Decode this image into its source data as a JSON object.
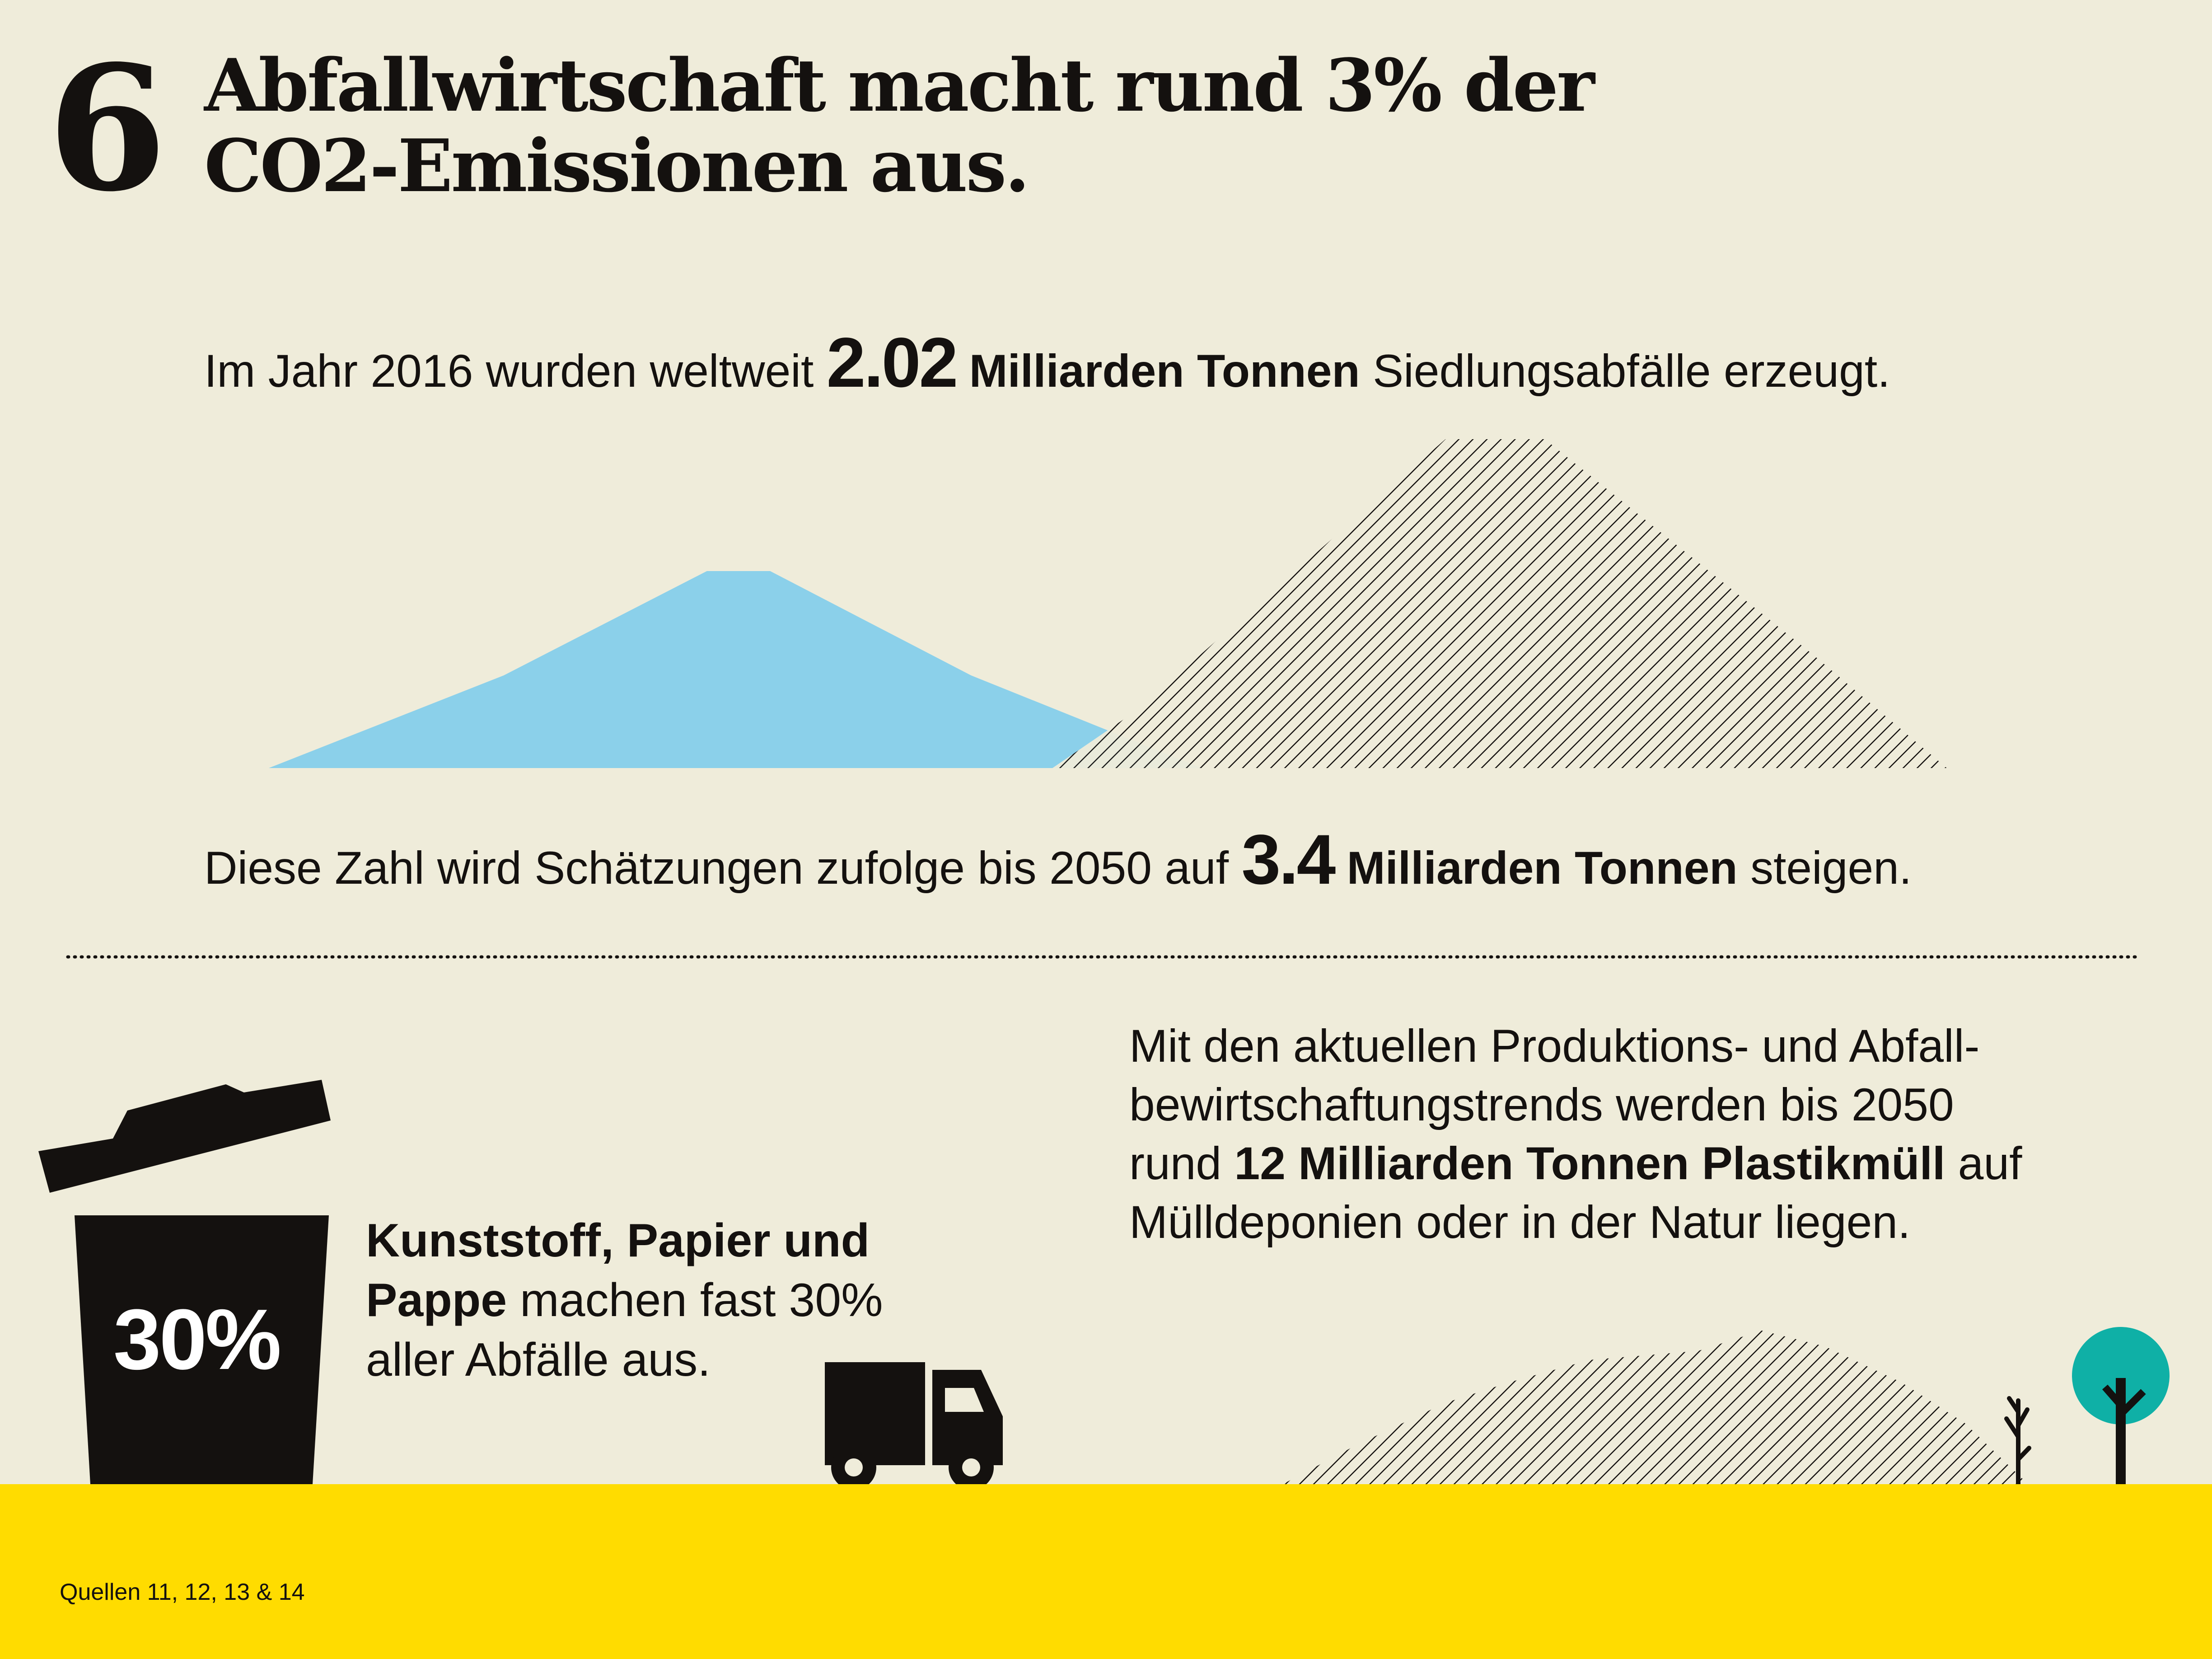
{
  "header": {
    "number": "6",
    "title_line1": "Abfallwirtschaft macht rund 3% der",
    "title_line2": "CO2-Emissionen aus."
  },
  "stat_2016": {
    "prefix": "Im Jahr 2016 wurden weltweit",
    "value": "2.02",
    "unit": "Milliarden Tonnen",
    "suffix": "Siedlungsabfälle erzeugt."
  },
  "stat_2050": {
    "prefix": "Diese Zahl wird Schätzungen zufolge bis 2050 auf",
    "value": "3.4",
    "unit": "Milliarden Tonnen",
    "suffix": "steigen."
  },
  "plastic_statement": {
    "line1": "Mit den aktuellen Produktions- und Abfall-",
    "line2": "bewirtschaftungstrends werden bis 2050",
    "line3_prefix": "rund",
    "line3_bold": "12 Milliarden Tonnen Plastikmüll",
    "line3_suffix": "auf",
    "line4": "Mülldeponien oder in der Natur liegen."
  },
  "bin": {
    "percent": "30%",
    "text_bold_1": "Kunststoff, Papier und",
    "text_bold_2": "Pappe",
    "text_rest_2": "machen fast 30%",
    "text_line3": "aller Abfälle aus."
  },
  "footer": {
    "sources": "Quellen 11, 12, 13 & 14"
  },
  "colors": {
    "background": "#efecda",
    "ink": "#14110f",
    "mound_2016": "#8bd0ea",
    "ground": "#ffdc00",
    "tree_crown": "#0fb0a6"
  },
  "icons": [
    "trash-bin-icon",
    "truck-icon",
    "tree-icon",
    "bare-tree-icon"
  ]
}
